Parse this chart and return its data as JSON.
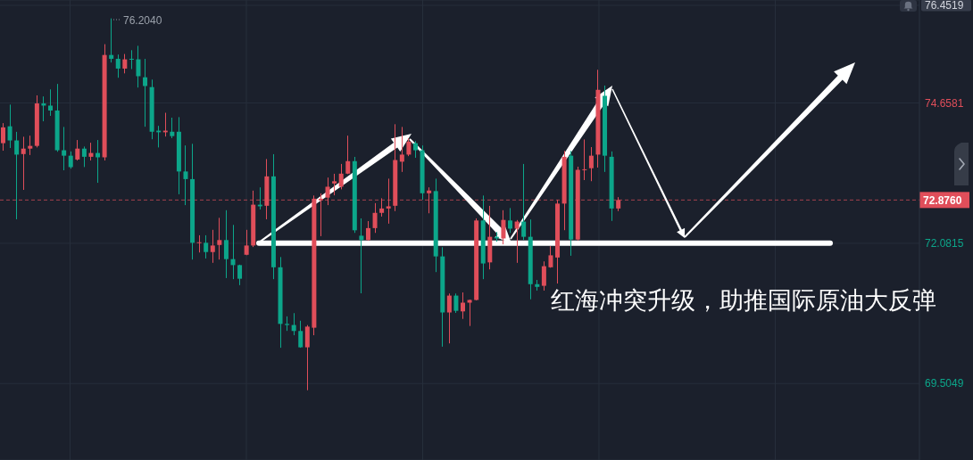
{
  "chart_data": {
    "type": "candlestick",
    "categories": [
      null,
      null,
      null,
      null,
      null,
      null,
      null,
      null,
      null,
      null,
      null,
      null,
      null,
      null,
      null,
      null,
      null,
      null,
      null,
      null,
      null,
      null,
      null,
      null,
      null,
      null,
      null,
      null,
      null,
      null,
      null,
      null,
      null,
      null,
      null,
      null,
      null,
      null,
      null,
      null,
      null,
      null,
      null,
      null,
      null,
      null,
      null,
      null,
      null,
      null,
      null,
      null,
      null,
      null,
      null,
      null,
      null,
      null,
      null,
      null,
      null,
      null,
      null,
      null,
      null,
      null,
      null,
      null,
      null,
      null,
      null,
      null,
      null,
      null,
      null,
      null,
      null,
      null,
      null,
      null,
      null,
      null,
      null,
      null,
      null,
      null,
      null,
      null,
      null,
      null,
      null,
      null,
      null,
      null,
      null,
      null,
      null,
      null,
      null,
      null,
      null,
      null,
      null,
      null,
      null,
      null,
      null,
      null,
      null,
      null,
      null,
      null,
      null,
      null,
      null,
      null,
      null,
      null,
      null,
      null,
      null,
      null,
      null,
      null,
      null,
      null,
      null,
      null,
      null,
      null,
      null,
      null,
      null,
      null,
      null,
      null
    ],
    "ohlc": [
      [
        73.92,
        74.28,
        73.79,
        74.21
      ],
      [
        74.23,
        74.62,
        73.84,
        73.97
      ],
      [
        73.97,
        74.12,
        72.53,
        73.71
      ],
      [
        73.72,
        74.03,
        73.07,
        73.82
      ],
      [
        73.82,
        74.05,
        73.71,
        73.87
      ],
      [
        73.87,
        74.79,
        73.85,
        74.65
      ],
      [
        74.65,
        74.77,
        74.33,
        74.61
      ],
      [
        74.61,
        74.9,
        74.43,
        74.52
      ],
      [
        74.52,
        75.0,
        73.77,
        73.79
      ],
      [
        73.79,
        74.21,
        73.43,
        73.69
      ],
      [
        73.69,
        73.76,
        73.46,
        73.48
      ],
      [
        73.62,
        73.97,
        73.61,
        73.82
      ],
      [
        73.82,
        73.85,
        73.49,
        73.67
      ],
      [
        73.67,
        73.92,
        73.61,
        73.74
      ],
      [
        73.74,
        73.97,
        73.2,
        73.66
      ],
      [
        73.66,
        75.73,
        73.61,
        75.54
      ],
      [
        75.54,
        76.204,
        75.41,
        75.47
      ],
      [
        75.47,
        75.54,
        75.13,
        75.29
      ],
      [
        75.29,
        75.55,
        75.21,
        75.46
      ],
      [
        75.47,
        75.62,
        75.29,
        75.46
      ],
      [
        75.46,
        75.7,
        74.95,
        75.15
      ],
      [
        75.13,
        75.46,
        74.23,
        74.97
      ],
      [
        74.95,
        75.08,
        74.0,
        74.13
      ],
      [
        74.15,
        74.23,
        73.85,
        74.12
      ],
      [
        74.12,
        74.47,
        74.05,
        74.15
      ],
      [
        74.13,
        74.38,
        74.02,
        74.05
      ],
      [
        74.13,
        74.39,
        72.99,
        73.4
      ],
      [
        73.4,
        73.87,
        72.79,
        73.26
      ],
      [
        73.26,
        73.9,
        71.79,
        72.09
      ],
      [
        72.09,
        72.22,
        71.92,
        72.1
      ],
      [
        72.09,
        72.22,
        71.81,
        71.92
      ],
      [
        71.92,
        72.32,
        71.73,
        72.04
      ],
      [
        72.05,
        72.54,
        71.79,
        72.14
      ],
      [
        72.14,
        72.68,
        71.45,
        71.79
      ],
      [
        71.79,
        72.41,
        71.43,
        71.68
      ],
      [
        71.68,
        71.68,
        71.32,
        71.43
      ],
      [
        71.87,
        72.32,
        71.87,
        72.04
      ],
      [
        72.04,
        73.04,
        72.02,
        72.79
      ],
      [
        72.79,
        73.1,
        72.71,
        72.76
      ],
      [
        72.77,
        73.62,
        72.53,
        73.31
      ],
      [
        73.31,
        73.71,
        71.43,
        71.64
      ],
      [
        71.64,
        71.82,
        70.17,
        70.6
      ],
      [
        70.6,
        70.73,
        70.48,
        70.58
      ],
      [
        70.58,
        70.79,
        70.4,
        70.47
      ],
      [
        70.47,
        70.65,
        70.17,
        70.17
      ],
      [
        70.17,
        70.57,
        69.39,
        70.55
      ],
      [
        70.53,
        72.95,
        70.4,
        72.9
      ],
      [
        72.87,
        72.99,
        72.22,
        72.9
      ],
      [
        72.92,
        73.28,
        72.79,
        73.12
      ],
      [
        73.18,
        73.35,
        72.97,
        73.22
      ],
      [
        73.12,
        73.53,
        73.08,
        73.36
      ],
      [
        73.36,
        74.05,
        73.36,
        73.59
      ],
      [
        73.59,
        73.66,
        72.28,
        72.32
      ],
      [
        72.22,
        72.53,
        71.17,
        72.14
      ],
      [
        72.14,
        72.48,
        72.14,
        72.36
      ],
      [
        72.36,
        72.81,
        72.28,
        72.64
      ],
      [
        72.64,
        72.9,
        72.58,
        72.72
      ],
      [
        72.72,
        73.26,
        72.45,
        72.76
      ],
      [
        72.77,
        74.26,
        72.68,
        73.61
      ],
      [
        73.58,
        74.21,
        73.4,
        73.71
      ],
      [
        73.71,
        74.0,
        73.69,
        73.95
      ],
      [
        73.92,
        73.95,
        73.66,
        73.79
      ],
      [
        73.79,
        73.87,
        72.89,
        73.0
      ],
      [
        73.0,
        73.1,
        72.64,
        73.05
      ],
      [
        73.04,
        73.26,
        71.56,
        71.84
      ],
      [
        71.84,
        72.0,
        70.19,
        70.81
      ],
      [
        70.81,
        71.15,
        70.25,
        71.12
      ],
      [
        71.12,
        71.15,
        70.81,
        70.84
      ],
      [
        70.83,
        71.17,
        70.7,
        70.99
      ],
      [
        70.99,
        71.04,
        70.57,
        71.04
      ],
      [
        71.04,
        72.53,
        71.04,
        72.5
      ],
      [
        72.5,
        72.95,
        71.43,
        71.71
      ],
      [
        71.73,
        72.76,
        71.61,
        72.2
      ],
      [
        72.2,
        72.28,
        72.12,
        72.17
      ],
      [
        72.17,
        72.68,
        72.07,
        72.51
      ],
      [
        72.5,
        72.72,
        72.28,
        72.35
      ],
      [
        72.35,
        72.5,
        71.73,
        72.48
      ],
      [
        72.48,
        73.53,
        72.15,
        72.2
      ],
      [
        72.2,
        72.51,
        71.06,
        71.33
      ],
      [
        71.33,
        71.4,
        71.22,
        71.28
      ],
      [
        71.3,
        71.74,
        71.22,
        71.66
      ],
      [
        71.64,
        72.02,
        71.64,
        71.86
      ],
      [
        71.82,
        72.87,
        71.35,
        72.81
      ],
      [
        72.81,
        73.77,
        72.33,
        73.67
      ],
      [
        73.69,
        73.77,
        71.86,
        72.15
      ],
      [
        72.15,
        73.48,
        72.14,
        73.43
      ],
      [
        73.43,
        73.98,
        73.25,
        73.44
      ],
      [
        73.46,
        73.84,
        73.23,
        73.69
      ],
      [
        73.71,
        75.26,
        73.48,
        74.9
      ],
      [
        74.79,
        74.97,
        73.4,
        73.69
      ],
      [
        73.67,
        73.76,
        72.5,
        72.72
      ],
      [
        72.72,
        72.92,
        72.68,
        72.876
      ],
      null,
      null,
      null,
      null,
      null,
      null,
      null,
      null,
      null,
      null,
      null,
      null,
      null,
      null,
      null,
      null,
      null,
      null,
      null,
      null,
      null,
      null,
      null,
      null,
      null,
      null,
      null,
      null,
      null,
      null,
      null,
      null,
      null,
      null,
      null,
      null,
      null,
      null,
      null,
      null,
      null,
      null,
      null,
      null
    ],
    "colors": [
      "#e04e5a",
      "#0ca68a",
      "#0ca68a",
      "#e04e5a",
      "#e04e5a",
      "#e04e5a",
      "#0ca68a",
      "#0ca68a",
      "#0ca68a",
      "#0ca68a",
      "#0ca68a",
      "#e04e5a",
      "#0ca68a",
      "#e04e5a",
      "#0ca68a",
      "#e04e5a",
      "#0ca68a",
      "#0ca68a",
      "#e04e5a",
      "#0ca68a",
      "#0ca68a",
      "#0ca68a",
      "#0ca68a",
      "#0ca68a",
      "#e04e5a",
      "#0ca68a",
      "#0ca68a",
      "#0ca68a",
      "#0ca68a",
      "#e04e5a",
      "#0ca68a",
      "#e04e5a",
      "#e04e5a",
      "#0ca68a",
      "#0ca68a",
      "#0ca68a",
      "#e04e5a",
      "#e04e5a",
      "#0ca68a",
      "#e04e5a",
      "#0ca68a",
      "#0ca68a",
      "#0ca68a",
      "#0ca68a",
      "#0ca68a",
      "#e04e5a",
      "#e04e5a",
      "#e04e5a",
      "#e04e5a",
      "#e04e5a",
      "#e04e5a",
      "#e04e5a",
      "#0ca68a",
      "#0ca68a",
      "#e04e5a",
      "#e04e5a",
      "#e04e5a",
      "#e04e5a",
      "#e04e5a",
      "#e04e5a",
      "#e04e5a",
      "#0ca68a",
      "#0ca68a",
      "#e04e5a",
      "#0ca68a",
      "#0ca68a",
      "#e04e5a",
      "#0ca68a",
      "#e04e5a",
      "#e04e5a",
      "#e04e5a",
      "#0ca68a",
      "#e04e5a",
      "#0ca68a",
      "#e04e5a",
      "#0ca68a",
      "#e04e5a",
      "#0ca68a",
      "#0ca68a",
      "#0ca68a",
      "#e04e5a",
      "#e04e5a",
      "#e04e5a",
      "#e04e5a",
      "#0ca68a",
      "#e04e5a",
      "#e04e5a",
      "#e04e5a",
      "#e04e5a",
      "#0ca68a",
      "#0ca68a",
      "#e04e5a",
      null,
      null,
      null,
      null,
      null,
      null,
      null,
      null,
      null,
      null,
      null,
      null,
      null,
      null,
      null,
      null,
      null,
      null,
      null,
      null,
      null,
      null,
      null,
      null,
      null,
      null,
      null,
      null,
      null,
      null,
      null,
      null,
      null,
      null,
      null,
      null,
      null,
      null,
      null,
      null,
      null,
      null,
      null,
      null
    ],
    "ylim": [
      68.1,
      76.55
    ],
    "yticks": [
      69.5049,
      72.0815,
      74.6581,
      76.4519
    ],
    "grid": true,
    "tick_labels": "y",
    "ref_lines": [
      {
        "axis": "y",
        "value": 72.876,
        "label": "72.8760",
        "color": "#e04e5a",
        "line_style": "dashed"
      },
      {
        "axis": "y",
        "value": 72.0815,
        "color": "#ffffff",
        "line_style": "solid"
      }
    ],
    "annotations": [
      "76.2040",
      "红海冲突升级，助推国际原油大反弹"
    ]
  }
}
